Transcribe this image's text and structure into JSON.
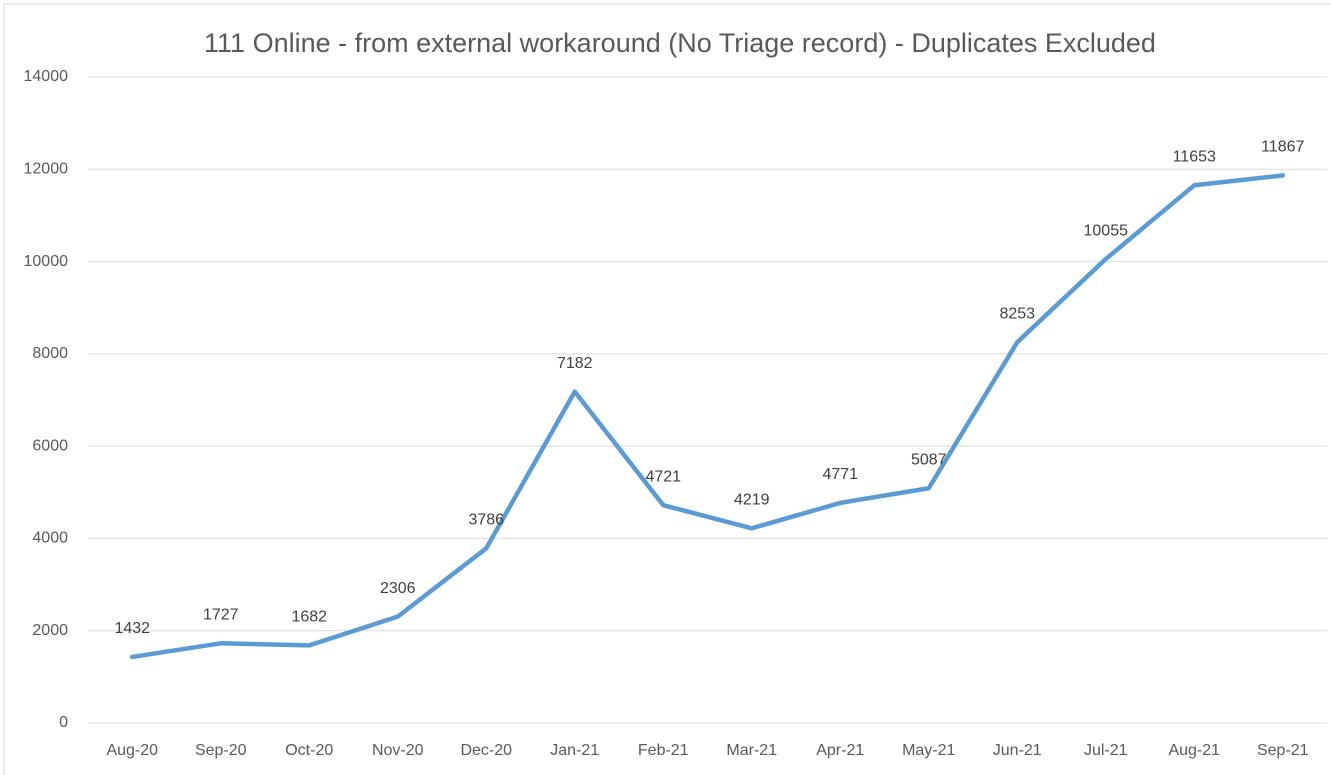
{
  "chart_data": {
    "type": "line",
    "title": "111 Online - from external workaround (No Triage record) - Duplicates Excluded",
    "categories": [
      "Aug-20",
      "Sep-20",
      "Oct-20",
      "Nov-20",
      "Dec-20",
      "Jan-21",
      "Feb-21",
      "Mar-21",
      "Apr-21",
      "May-21",
      "Jun-21",
      "Jul-21",
      "Aug-21",
      "Sep-21"
    ],
    "values": [
      1432,
      1727,
      1682,
      2306,
      3786,
      7182,
      4721,
      4219,
      4771,
      5087,
      8253,
      10055,
      11653,
      11867
    ],
    "color": "#5b9bd5",
    "ylim": [
      0,
      14000
    ],
    "yticks": [
      0,
      2000,
      4000,
      6000,
      8000,
      10000,
      12000,
      14000
    ],
    "grid": true
  }
}
